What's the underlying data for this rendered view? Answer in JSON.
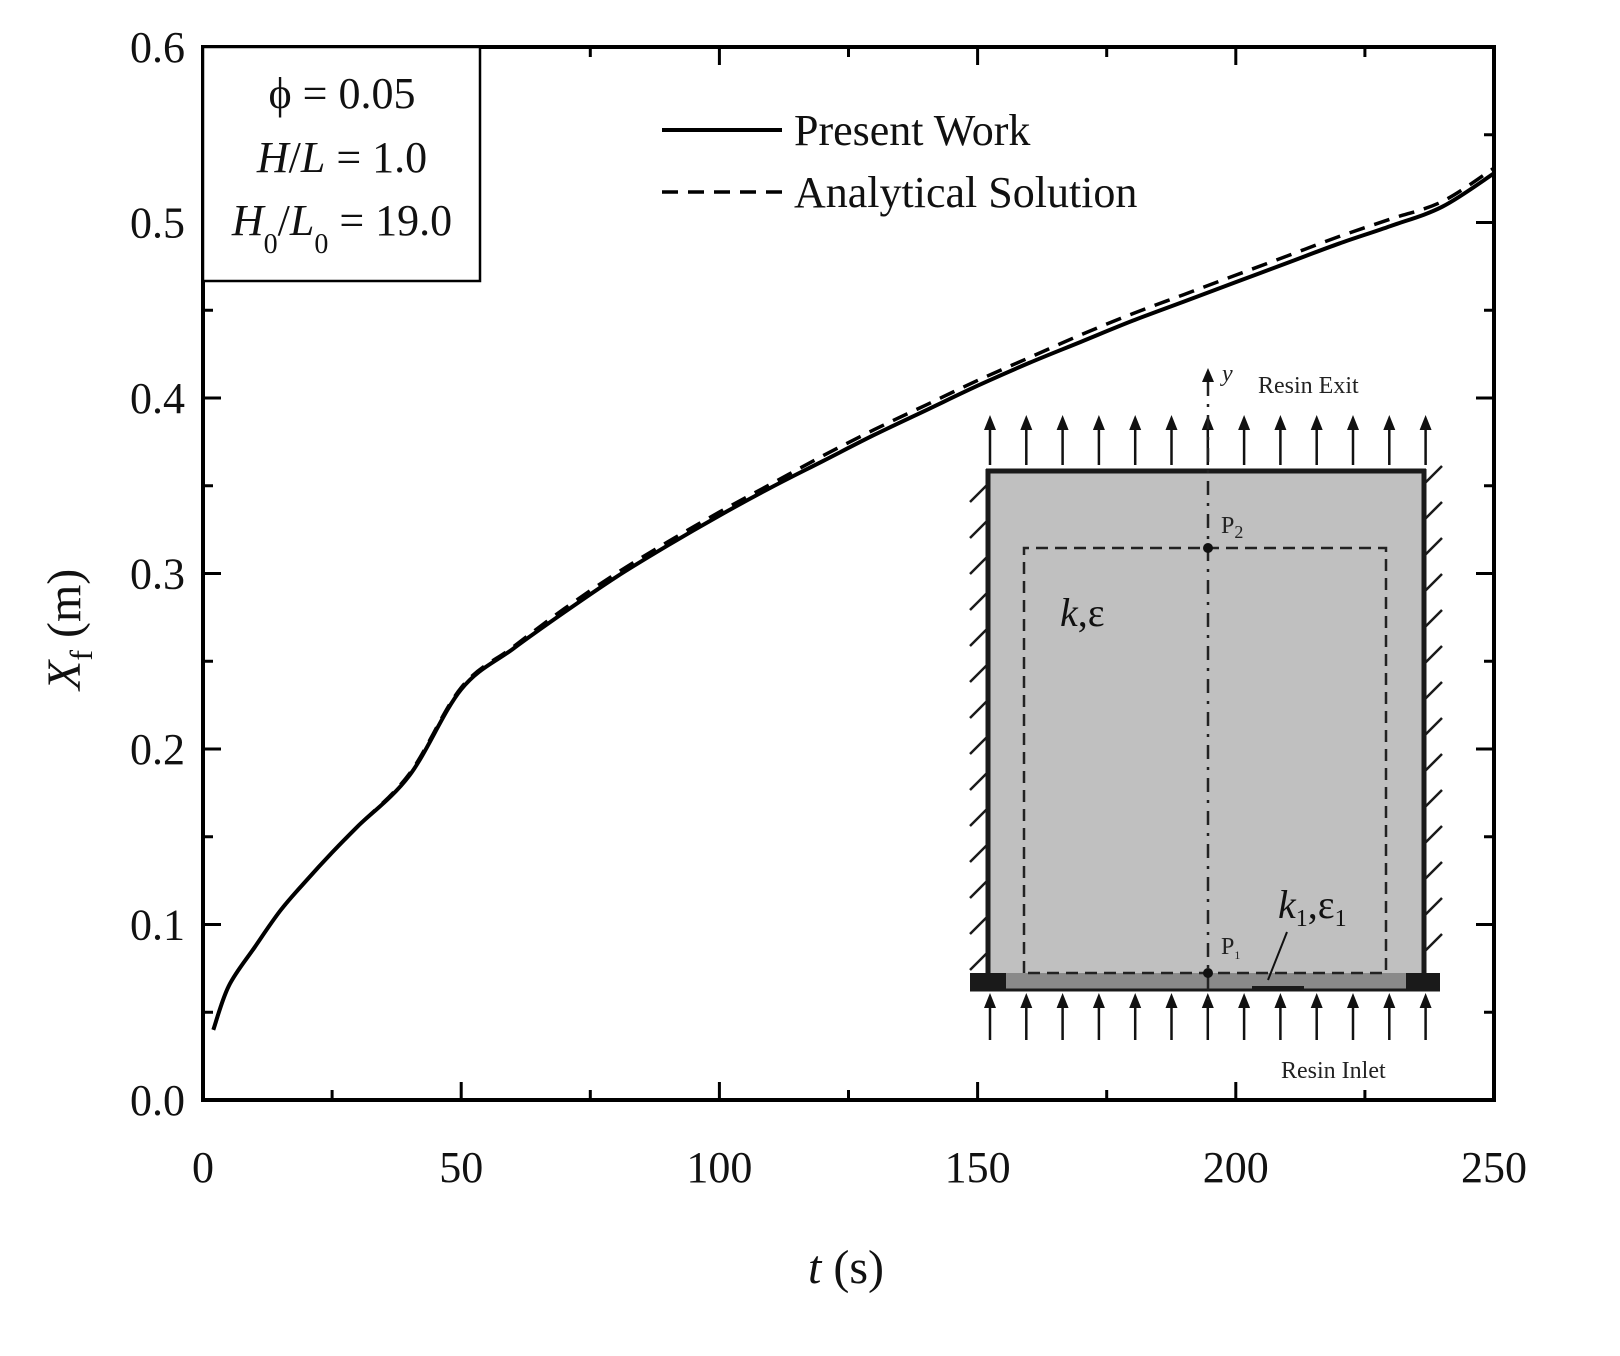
{
  "chart_data": {
    "type": "line",
    "title": "",
    "xlabel": "t (s)",
    "ylabel": "X_f (m)",
    "xlabel_parts": {
      "var": "t",
      "unit": " (s)"
    },
    "ylabel_parts": {
      "var": "X",
      "sub": "f",
      "unit": " (m)"
    },
    "xlim": [
      0,
      250
    ],
    "ylim": [
      0.0,
      0.6
    ],
    "x_ticks": [
      0,
      50,
      100,
      150,
      200,
      250
    ],
    "x_tick_labels": [
      "0",
      "50",
      "100",
      "150",
      "200",
      "250"
    ],
    "x_minor_ticks": [
      25,
      75,
      125,
      175,
      225
    ],
    "y_ticks": [
      0.0,
      0.1,
      0.2,
      0.3,
      0.4,
      0.5,
      0.6
    ],
    "y_tick_labels": [
      "0.0",
      "0.1",
      "0.2",
      "0.3",
      "0.4",
      "0.5",
      "0.6"
    ],
    "y_minor_ticks": [
      0.05,
      0.15,
      0.25,
      0.35,
      0.45,
      0.55
    ],
    "grid": false,
    "legend_position": "upper center",
    "series": [
      {
        "name": "Present Work",
        "style": "solid",
        "color": "#000000",
        "x": [
          2,
          5,
          10,
          15,
          20,
          25,
          30,
          40,
          50,
          60,
          70,
          80,
          90,
          100,
          110,
          120,
          130,
          140,
          150,
          160,
          170,
          180,
          190,
          200,
          210,
          220,
          230,
          240,
          250
        ],
        "values": [
          0.04,
          0.065,
          0.087,
          0.108,
          0.125,
          0.141,
          0.156,
          0.185,
          0.234,
          0.257,
          0.278,
          0.298,
          0.316,
          0.333,
          0.349,
          0.364,
          0.379,
          0.393,
          0.407,
          0.42,
          0.432,
          0.444,
          0.455,
          0.466,
          0.477,
          0.488,
          0.498,
          0.509,
          0.528
        ]
      },
      {
        "name": "Analytical Solution",
        "style": "dashed",
        "color": "#000000",
        "x": [
          2,
          5,
          10,
          15,
          20,
          25,
          30,
          40,
          50,
          60,
          70,
          80,
          90,
          100,
          110,
          120,
          130,
          140,
          150,
          160,
          170,
          180,
          190,
          200,
          210,
          220,
          230,
          240,
          250
        ],
        "values": [
          0.04,
          0.065,
          0.087,
          0.108,
          0.125,
          0.141,
          0.156,
          0.186,
          0.235,
          0.258,
          0.28,
          0.3,
          0.318,
          0.335,
          0.351,
          0.367,
          0.382,
          0.396,
          0.41,
          0.423,
          0.436,
          0.448,
          0.459,
          0.47,
          0.481,
          0.492,
          0.502,
          0.512,
          0.531
        ]
      }
    ],
    "annotations": {
      "parameter_box": [
        {
          "label": "ϕ",
          "eq": " = 0.05"
        },
        {
          "label": "H/L",
          "eq": " = 1.0"
        },
        {
          "label": "H0/L0",
          "eq": " = 19.0"
        }
      ]
    }
  },
  "params_box": {
    "phi": "ϕ",
    "phi_eq": " = 0.05",
    "hl_H": "H",
    "hl_slash": "/",
    "hl_L": "L",
    "hl_eq": " = 1.0",
    "h0_H": "H",
    "h0_sub": "0",
    "h0_slash": "/",
    "h0_L": "L",
    "h0_sub2": "0",
    "h0_eq": " = 19.0"
  },
  "legend": {
    "items": [
      {
        "label": "Present Work",
        "style": "solid"
      },
      {
        "label": "Analytical Solution",
        "style": "dashed"
      }
    ]
  },
  "axes": {
    "x_title_var": "t",
    "x_title_unit": " (s)",
    "y_title_var": "X",
    "y_title_sub": "f",
    "y_title_unit": " (m)"
  },
  "inset": {
    "exit_label": "Resin Exit",
    "inlet_label": "Resin Inlet",
    "axis_label": "y",
    "p1": "P",
    "p1_sub": "1",
    "p2": "P",
    "p2_sub": "2",
    "region_main": "k,ε",
    "region_main_k": "k",
    "region_main_rest": ",ε",
    "region_inlet_k": "k",
    "region_inlet_sub1": "1",
    "region_inlet_comma": ",ε",
    "region_inlet_sub2": "1",
    "fill_color": "#c0c0c0",
    "inlet_layer_color": "#8a8a8a"
  }
}
